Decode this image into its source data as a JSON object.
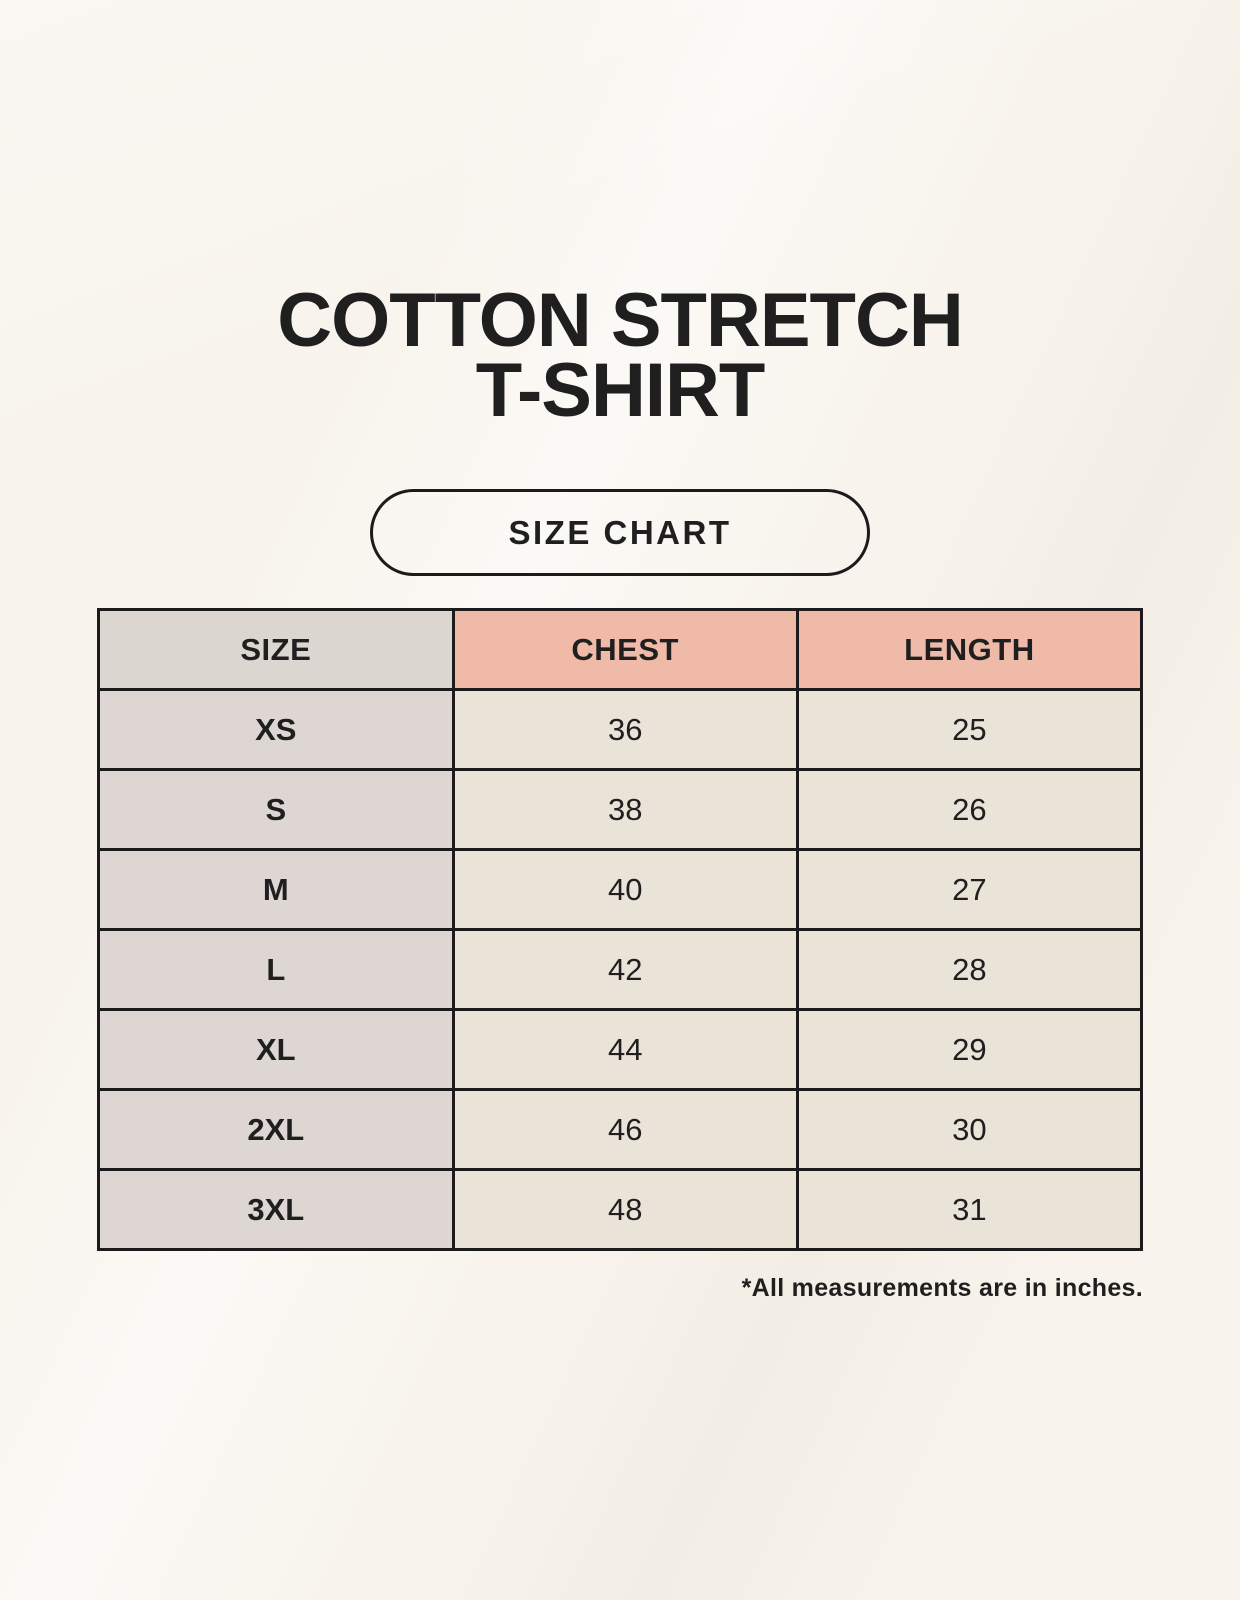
{
  "page": {
    "title_line1": "COTTON STRETCH",
    "title_line2": "T-SHIRT",
    "badge_label": "SIZE CHART",
    "footnote": "*All measurements are in inches."
  },
  "chart_data": {
    "type": "table",
    "title": "COTTON STRETCH T-SHIRT",
    "subtitle": "SIZE CHART",
    "units": "inches",
    "columns": [
      "SIZE",
      "CHEST",
      "LENGTH"
    ],
    "rows": [
      {
        "size": "XS",
        "chest": 36,
        "length": 25
      },
      {
        "size": "S",
        "chest": 38,
        "length": 26
      },
      {
        "size": "M",
        "chest": 40,
        "length": 27
      },
      {
        "size": "L",
        "chest": 42,
        "length": 28
      },
      {
        "size": "XL",
        "chest": 44,
        "length": 29
      },
      {
        "size": "2XL",
        "chest": 46,
        "length": 30
      },
      {
        "size": "3XL",
        "chest": 48,
        "length": 31
      }
    ],
    "footnote": "*All measurements are in inches."
  },
  "colors": {
    "page_bg": "#f8f4ed",
    "size_header_bg": "#dcd6d1",
    "measure_header_bg": "#efbaa8",
    "size_col_bg": "#ddd6d2",
    "data_cell_bg": "#eae3d8",
    "border": "#1b1b1b",
    "text": "#1f1f1f"
  }
}
